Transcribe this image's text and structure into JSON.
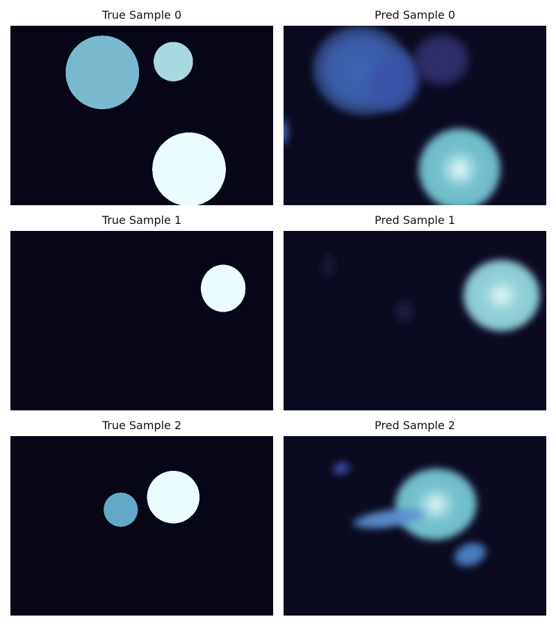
{
  "chart_data": [
    {
      "type": "heatmap",
      "title": "True Sample 0",
      "colormap": "mako",
      "background_color": "#060616",
      "blobs": [
        {
          "cx": 0.35,
          "cy": 0.26,
          "rx": 0.14,
          "ry": 0.14,
          "color": "#79b9cf",
          "kind": "pixel"
        },
        {
          "cx": 0.62,
          "cy": 0.2,
          "rx": 0.075,
          "ry": 0.075,
          "color": "#a8d9df",
          "kind": "pixel"
        },
        {
          "cx": 0.68,
          "cy": 0.8,
          "rx": 0.14,
          "ry": 0.14,
          "color": "#eafcfd",
          "kind": "pixel"
        }
      ]
    },
    {
      "type": "heatmap",
      "title": "Pred Sample 0",
      "colormap": "mako",
      "background_color": "#0b0b20",
      "blobs": [
        {
          "cx": 0.3,
          "cy": 0.25,
          "rx": 0.19,
          "ry": 0.17,
          "color": "#3f64b4",
          "kind": "blur",
          "rot": 12
        },
        {
          "cx": 0.42,
          "cy": 0.31,
          "rx": 0.1,
          "ry": 0.12,
          "color": "#3b52a8",
          "kind": "blur",
          "rot": 25
        },
        {
          "cx": 0.6,
          "cy": 0.19,
          "rx": 0.11,
          "ry": 0.1,
          "color": "#2f2f6e",
          "kind": "blur",
          "rot": 0
        },
        {
          "cx": 0.0,
          "cy": 0.59,
          "rx": 0.02,
          "ry": 0.05,
          "color": "#3f5fb1",
          "kind": "blur",
          "rot": 0
        },
        {
          "cx": 0.67,
          "cy": 0.8,
          "rx": 0.16,
          "ry": 0.16,
          "color": "#74c3ce",
          "kind": "blur",
          "rot": 0,
          "highlight": "#e9fbfc"
        }
      ]
    },
    {
      "type": "heatmap",
      "title": "True Sample 1",
      "colormap": "mako",
      "background_color": "#060616",
      "blobs": [
        {
          "cx": 0.81,
          "cy": 0.32,
          "rx": 0.085,
          "ry": 0.09,
          "color": "#eafcfd",
          "kind": "pixel"
        }
      ]
    },
    {
      "type": "heatmap",
      "title": "Pred Sample 1",
      "colormap": "mako",
      "background_color": "#0b0b20",
      "blobs": [
        {
          "cx": 0.83,
          "cy": 0.36,
          "rx": 0.15,
          "ry": 0.14,
          "color": "#90d2d8",
          "kind": "blur",
          "rot": 0,
          "highlight": "#e5f8f8"
        },
        {
          "cx": 0.46,
          "cy": 0.45,
          "rx": 0.04,
          "ry": 0.04,
          "color": "#1c1c3e",
          "kind": "blur",
          "rot": 0
        },
        {
          "cx": 0.17,
          "cy": 0.19,
          "rx": 0.03,
          "ry": 0.05,
          "color": "#16162f",
          "kind": "blur",
          "rot": 0
        }
      ]
    },
    {
      "type": "heatmap",
      "title": "True Sample 2",
      "colormap": "mako",
      "background_color": "#060616",
      "blobs": [
        {
          "cx": 0.62,
          "cy": 0.34,
          "rx": 0.1,
          "ry": 0.1,
          "color": "#eafcfd",
          "kind": "pixel"
        },
        {
          "cx": 0.42,
          "cy": 0.41,
          "rx": 0.065,
          "ry": 0.065,
          "color": "#63a8c6",
          "kind": "pixel"
        }
      ]
    },
    {
      "type": "heatmap",
      "title": "Pred Sample 2",
      "colormap": "mako",
      "background_color": "#0b0b20",
      "blobs": [
        {
          "cx": 0.58,
          "cy": 0.38,
          "rx": 0.16,
          "ry": 0.14,
          "color": "#75c4cf",
          "kind": "blur",
          "rot": -5,
          "highlight": "#e4f8f8"
        },
        {
          "cx": 0.4,
          "cy": 0.46,
          "rx": 0.14,
          "ry": 0.035,
          "color": "#5a8fd2",
          "kind": "blur",
          "rot": -8
        },
        {
          "cx": 0.22,
          "cy": 0.18,
          "rx": 0.035,
          "ry": 0.025,
          "color": "#3a48a0",
          "kind": "blur",
          "rot": -20
        },
        {
          "cx": 0.71,
          "cy": 0.66,
          "rx": 0.065,
          "ry": 0.045,
          "color": "#4b82c8",
          "kind": "blur",
          "rot": -20
        }
      ]
    }
  ]
}
